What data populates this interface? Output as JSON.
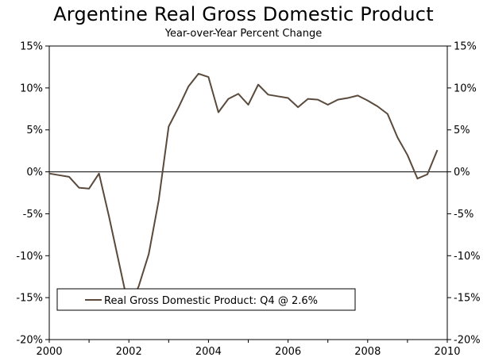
{
  "chart_data": {
    "type": "line",
    "title": "Argentine Real Gross Domestic Product",
    "subtitle": "Year-over-Year Percent Change",
    "xlabel": "",
    "ylabel": "",
    "xlim": [
      2000,
      2010
    ],
    "ylim": [
      -20,
      15
    ],
    "x_ticks": [
      2000,
      2002,
      2004,
      2006,
      2008,
      2010
    ],
    "y_ticks": [
      15,
      10,
      5,
      0,
      -5,
      -10,
      -15,
      -20
    ],
    "y_tick_labels": [
      "15%",
      "10%",
      "5%",
      "0%",
      "-5%",
      "-10%",
      "-15%",
      "-20%"
    ],
    "grid": false,
    "zero_line": true,
    "legend_position": "bottom-left",
    "series": [
      {
        "name": "Real Gross Domestic Product: Q4 @ 2.6%",
        "color": "#5a4a3c",
        "x": [
          2000.0,
          2000.25,
          2000.5,
          2000.75,
          2001.0,
          2001.25,
          2001.5,
          2001.75,
          2002.0,
          2002.25,
          2002.5,
          2002.75,
          2003.0,
          2003.25,
          2003.5,
          2003.75,
          2004.0,
          2004.25,
          2004.5,
          2004.75,
          2005.0,
          2005.25,
          2005.5,
          2005.75,
          2006.0,
          2006.25,
          2006.5,
          2006.75,
          2007.0,
          2007.25,
          2007.5,
          2007.75,
          2008.0,
          2008.25,
          2008.5,
          2008.75,
          2009.0,
          2009.25,
          2009.5,
          2009.75
        ],
        "y": [
          -0.2,
          -0.4,
          -0.6,
          -1.9,
          -2.0,
          -0.2,
          -5.3,
          -10.8,
          -16.3,
          -13.6,
          -9.8,
          -3.4,
          5.4,
          7.7,
          10.2,
          11.7,
          11.3,
          7.1,
          8.7,
          9.3,
          8.0,
          10.4,
          9.2,
          9.0,
          8.8,
          7.7,
          8.7,
          8.6,
          8.0,
          8.6,
          8.8,
          9.1,
          8.5,
          7.8,
          6.9,
          4.1,
          2.0,
          -0.8,
          -0.3,
          2.6
        ]
      }
    ]
  }
}
